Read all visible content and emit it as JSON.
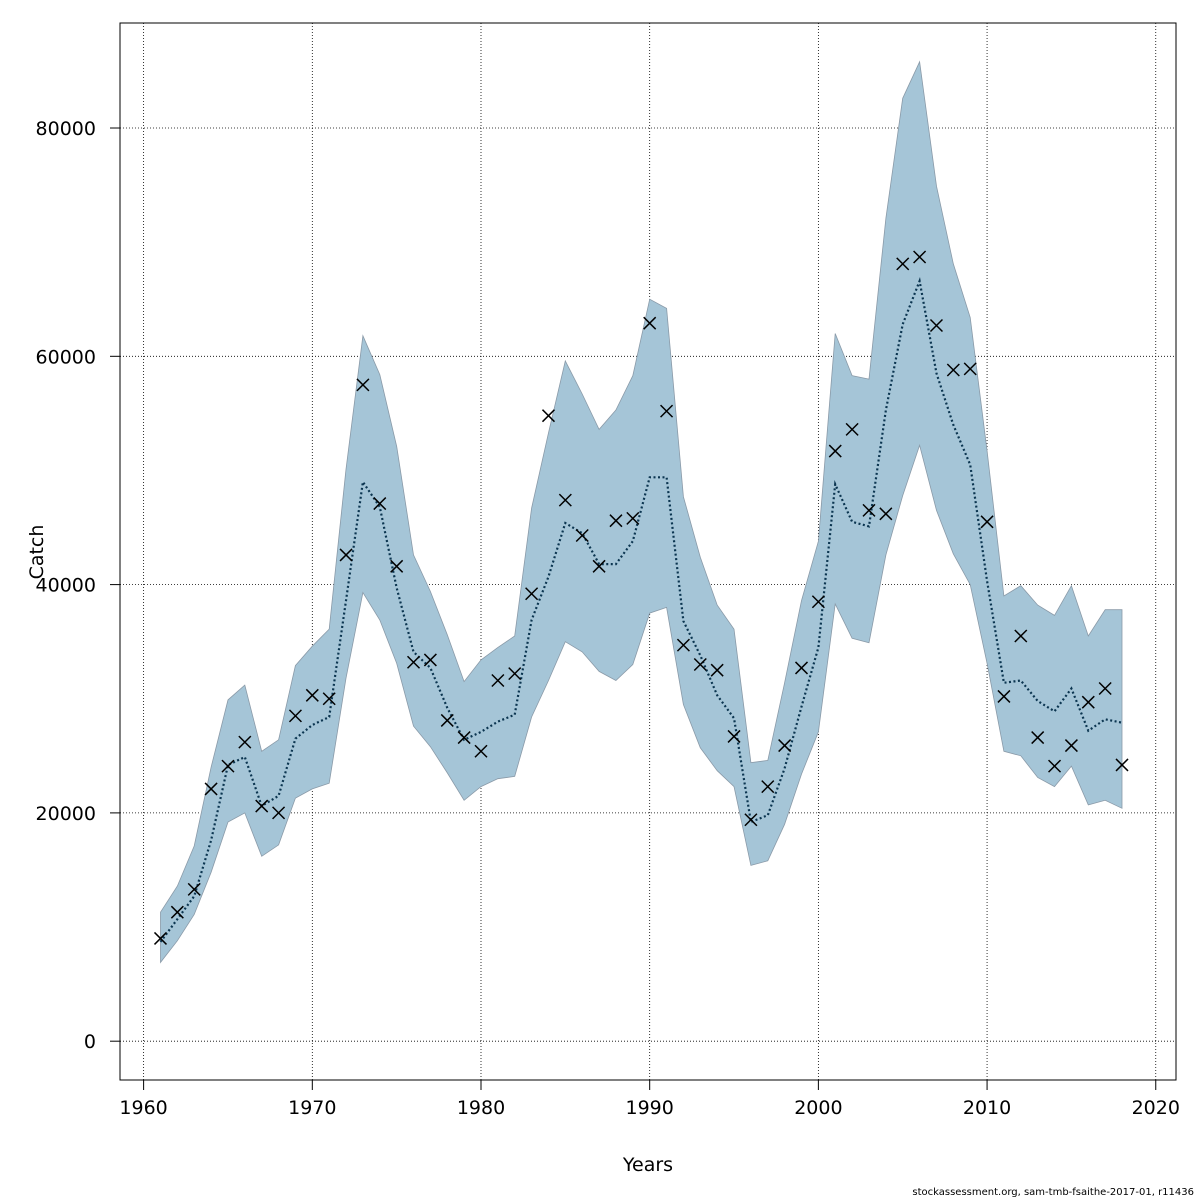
{
  "chart_data": {
    "type": "line",
    "title": "",
    "xlabel": "Years",
    "ylabel": "Catch",
    "xlim": [
      1958.6,
      2021.2
    ],
    "ylim": [
      -3400,
      89200
    ],
    "xticks": [
      1960,
      1970,
      1980,
      1990,
      2000,
      2010,
      2020
    ],
    "yticks": [
      0,
      20000,
      40000,
      60000,
      80000
    ],
    "grid": true,
    "colors": {
      "band": "#a5c5d7",
      "band_edge": "#8a9aa8",
      "estimate": "#0b3550",
      "observed": "#000000"
    },
    "years": [
      1961,
      1962,
      1963,
      1964,
      1965,
      1966,
      1967,
      1968,
      1969,
      1970,
      1971,
      1972,
      1973,
      1974,
      1975,
      1976,
      1977,
      1978,
      1979,
      1980,
      1981,
      1982,
      1983,
      1984,
      1985,
      1986,
      1987,
      1988,
      1989,
      1990,
      1991,
      1992,
      1993,
      1994,
      1995,
      1996,
      1997,
      1998,
      1999,
      2000,
      2001,
      2002,
      2003,
      2004,
      2005,
      2006,
      2007,
      2008,
      2009,
      2010,
      2011,
      2012,
      2013,
      2014,
      2015,
      2016,
      2017,
      2018
    ],
    "series": [
      {
        "role": "estimate",
        "values": [
          8700,
          10700,
          12700,
          17600,
          24200,
          24900,
          20600,
          21500,
          26500,
          27700,
          28400,
          38600,
          49000,
          46800,
          39700,
          34100,
          32700,
          29200,
          26400,
          27100,
          28000,
          28600,
          36900,
          40700,
          45400,
          44500,
          41800,
          41800,
          43800,
          49400,
          49400,
          36800,
          33800,
          30300,
          28300,
          19200,
          19800,
          23900,
          29300,
          34500,
          48800,
          45500,
          45100,
          55300,
          62800,
          66600,
          58500,
          54000,
          50500,
          40300,
          31400,
          31600,
          29800,
          28900,
          30900,
          27200,
          28200,
          27900
        ]
      },
      {
        "role": "upper",
        "values": [
          11300,
          13600,
          17100,
          24000,
          29900,
          31200,
          25400,
          26400,
          32900,
          34600,
          36100,
          50100,
          61800,
          58400,
          52100,
          42600,
          39400,
          35600,
          31500,
          33400,
          34500,
          35500,
          46700,
          53300,
          59600,
          56700,
          53600,
          55300,
          58300,
          65000,
          64200,
          47700,
          42400,
          38200,
          36100,
          24400,
          24600,
          31400,
          38600,
          43800,
          62000,
          58300,
          58000,
          72100,
          82600,
          85800,
          74900,
          68100,
          63400,
          51700,
          39000,
          39900,
          38200,
          37300,
          39900,
          35500,
          37800,
          37800
        ]
      },
      {
        "role": "lower",
        "values": [
          6900,
          8800,
          11100,
          14800,
          19200,
          20000,
          16200,
          17200,
          21300,
          22100,
          22600,
          31800,
          39300,
          36900,
          33100,
          27600,
          25800,
          23500,
          21100,
          22300,
          23000,
          23200,
          28400,
          31600,
          35000,
          34100,
          32400,
          31600,
          33000,
          37500,
          38000,
          29500,
          25700,
          23700,
          22300,
          15400,
          15800,
          19000,
          23400,
          27100,
          38300,
          35300,
          34900,
          42600,
          47800,
          52200,
          46500,
          42700,
          40000,
          33100,
          25400,
          25000,
          23100,
          22300,
          24100,
          20700,
          21100,
          20400
        ]
      },
      {
        "role": "observed",
        "values": [
          9000,
          11300,
          13300,
          22100,
          24100,
          26200,
          20600,
          20000,
          28500,
          30300,
          30000,
          42600,
          57500,
          47100,
          41600,
          33200,
          33400,
          28100,
          26600,
          25400,
          31600,
          32200,
          39200,
          54800,
          47400,
          44300,
          41600,
          45600,
          45800,
          62900,
          55200,
          34700,
          33000,
          32500,
          26700,
          19400,
          22300,
          25900,
          32700,
          38500,
          51700,
          53600,
          46500,
          46200,
          68100,
          68700,
          62700,
          58800,
          58900,
          45500,
          30200,
          35500,
          26600,
          24100,
          25900,
          29700,
          30900,
          24200
        ]
      }
    ]
  },
  "footer": {
    "credit": "stockassessment.org, sam-tmb-fsaithe-2017-01, r11436"
  }
}
